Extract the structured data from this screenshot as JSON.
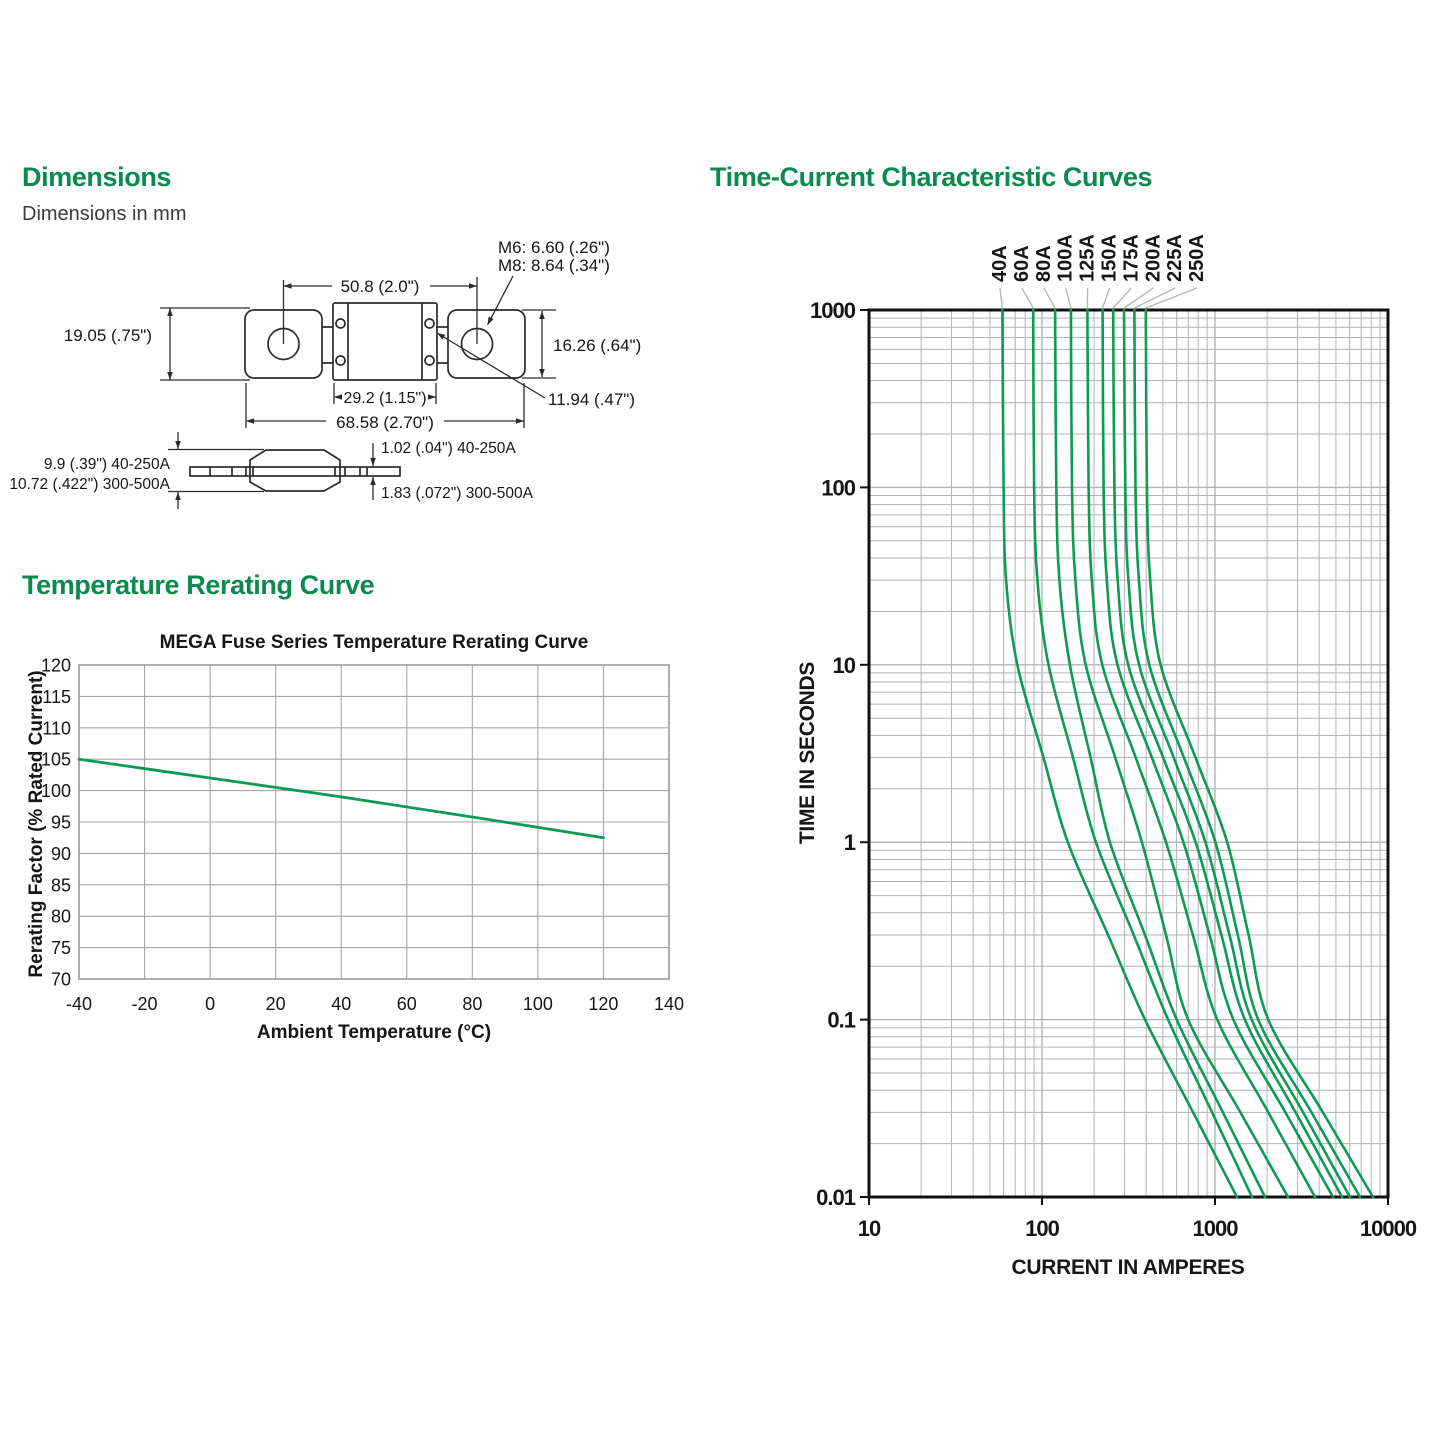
{
  "page": {
    "accent_green": "#0a8a4c",
    "curve_green": "#0d9a53",
    "grid_gray": "#b3b3b3",
    "leader_gray": "#b8b8b8",
    "drawing_ink": "#2b2b2b"
  },
  "dimensions_section": {
    "title": "Dimensions",
    "subtitle": "Dimensions in mm",
    "labels": {
      "hole_m6": "M6: 6.60 (.26\")",
      "hole_m8": "M8: 8.64 (.34\")",
      "hole_spacing": "50.8 (2.0\")",
      "left_height": "19.05 (.75\")",
      "right_height": "16.26 (.64\")",
      "body_width": "29.2 (1.15\")",
      "overall_length": "68.58 (2.70\")",
      "hole_offset": "11.94 (.47\")",
      "side_height_low": "9.9 (.39\")  40-250A",
      "side_height_high": "10.72 (.422\") 300-500A",
      "thickness_low": "1.02 (.04\") 40-250A",
      "thickness_high": "1.83 (.072\") 300-500A"
    }
  },
  "rerating_section": {
    "title": "Temperature Rerating Curve"
  },
  "tcc_section": {
    "title": "Time-Current Characteristic Curves"
  },
  "chart_data": [
    {
      "type": "line",
      "title": "MEGA Fuse Series Temperature Rerating Curve",
      "xlabel": "Ambient Temperature (°C)",
      "ylabel": "Rerating Factor (% Rated Current)",
      "xlim": [
        -40,
        140
      ],
      "ylim": [
        70,
        120
      ],
      "xticks": [
        -40,
        -20,
        0,
        20,
        40,
        60,
        80,
        100,
        120,
        140
      ],
      "yticks": [
        120,
        115,
        110,
        105,
        100,
        95,
        90,
        85,
        80,
        75,
        70
      ],
      "grid": true,
      "legend": false,
      "series": [
        {
          "name": "rerating-factor",
          "points": [
            [
              -40,
              105
            ],
            [
              0,
              102
            ],
            [
              40,
              99
            ],
            [
              80,
              95.8
            ],
            [
              120,
              92.5
            ]
          ]
        }
      ]
    },
    {
      "type": "line",
      "title": "Time-Current Characteristic Curves",
      "xlabel": "CURRENT IN AMPERES",
      "ylabel": "TIME IN SECONDS",
      "xscale": "log",
      "yscale": "log",
      "xlim": [
        10,
        10000
      ],
      "ylim": [
        0.01,
        1000
      ],
      "xticks": [
        10,
        100,
        1000,
        10000
      ],
      "yticks": [
        1000,
        100,
        10,
        1,
        0.1,
        0.01
      ],
      "grid": true,
      "legend": "rotated labels above plot",
      "times_seconds": [
        1000,
        100,
        30,
        10,
        3,
        1,
        0.3,
        0.1,
        0.03,
        0.01
      ],
      "series": [
        {
          "name": "40A",
          "amps": [
            59,
            60,
            62,
            72,
            102,
            141,
            241,
            394,
            747,
            1340
          ]
        },
        {
          "name": "60A",
          "amps": [
            89,
            90,
            94,
            109,
            151,
            205,
            339,
            536,
            962,
            1637
          ]
        },
        {
          "name": "80A",
          "amps": [
            119,
            121,
            126,
            145,
            191,
            247,
            394,
            601,
            1111,
            1946
          ]
        },
        {
          "name": "100A",
          "amps": [
            147,
            149,
            156,
            179,
            265,
            378,
            521,
            700,
            1403,
            2642
          ]
        },
        {
          "name": "125A",
          "amps": [
            183,
            186,
            194,
            223,
            348,
            521,
            745,
            1031,
            2034,
            3784
          ]
        },
        {
          "name": "150A",
          "amps": [
            224,
            227,
            237,
            273,
            432,
            657,
            931,
            1277,
            2553,
            4810
          ]
        },
        {
          "name": "175A",
          "amps": [
            258,
            262,
            274,
            315,
            502,
            772,
            1089,
            1489,
            2925,
            5420
          ]
        },
        {
          "name": "200A",
          "amps": [
            298,
            303,
            316,
            364,
            577,
            880,
            1213,
            1630,
            3230,
            6026
          ]
        },
        {
          "name": "225A",
          "amps": [
            342,
            347,
            363,
            417,
            661,
            1005,
            1355,
            1778,
            3614,
            6887
          ]
        },
        {
          "name": "250A",
          "amps": [
            398,
            404,
            422,
            485,
            771,
            1176,
            1563,
            2033,
            4207,
            8185
          ]
        }
      ]
    }
  ]
}
